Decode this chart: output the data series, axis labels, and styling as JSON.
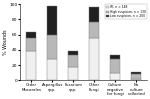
{
  "categories": [
    "Order\nMucorales",
    "Aspergillus\nspp.",
    "Fusarium\nspp.",
    "Other\nFungi",
    "Culture\nnegative\nfor fungi",
    "No\nculture\ncollected"
  ],
  "IFI": [
    38,
    28,
    18,
    55,
    10,
    2
  ],
  "high_suspect": [
    18,
    32,
    15,
    22,
    18,
    6
  ],
  "low_suspect": [
    8,
    38,
    5,
    20,
    5,
    3
  ],
  "colors": {
    "IFI": "#f0f0f0",
    "high_suspect": "#b8b8b8",
    "low_suspect": "#202020"
  },
  "legend_labels": [
    "IFI, n = 148",
    "High suspicion, n = 130",
    "Low suspicion, n = 200"
  ],
  "ylabel": "% Wounds",
  "ylim": [
    0,
    100
  ],
  "yticks": [
    0,
    20,
    40,
    60,
    80,
    100
  ],
  "bar_width": 0.5,
  "edge_color": "#777777"
}
